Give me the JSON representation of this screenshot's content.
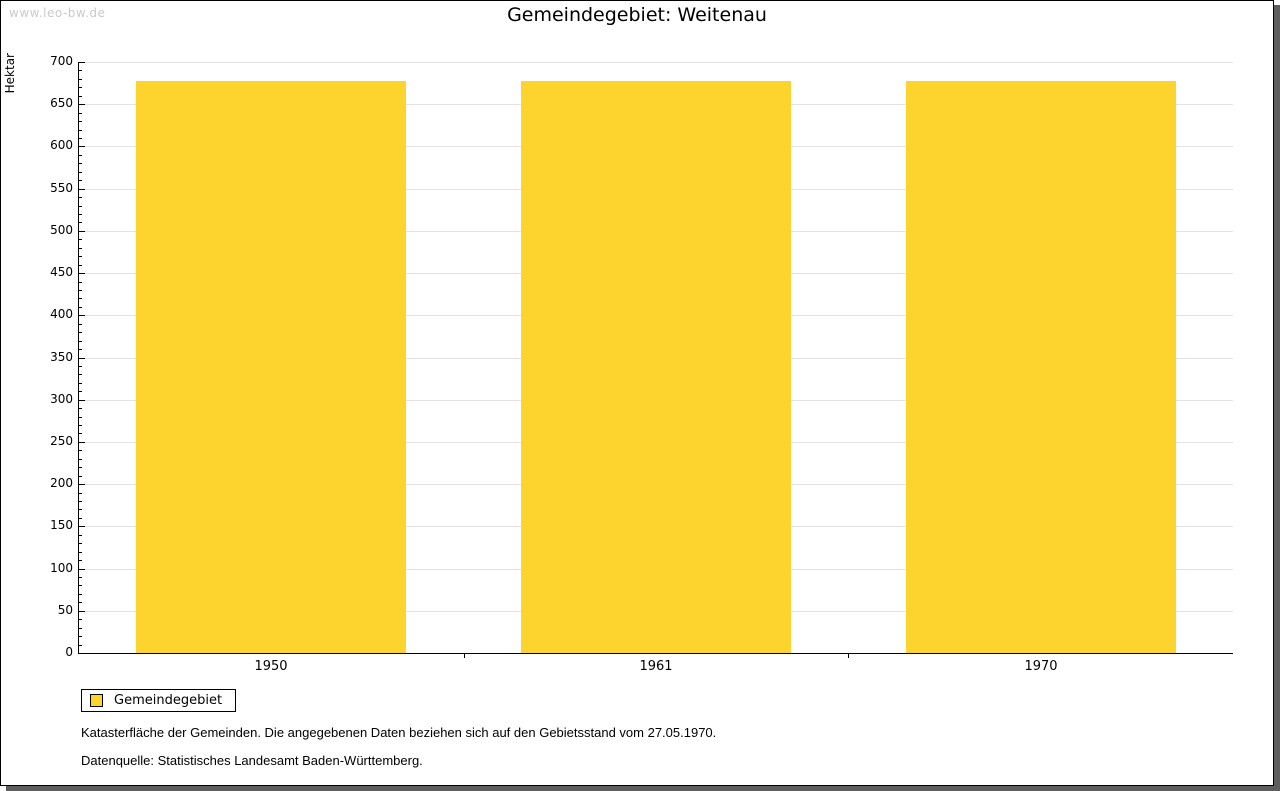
{
  "watermark": "www.leo-bw.de",
  "header": {
    "title": "Gemeindegebiet: Weitenau"
  },
  "chart_data": {
    "type": "bar",
    "title": "Gemeindegebiet: Weitenau",
    "xlabel": "",
    "ylabel": "Hektar",
    "categories": [
      "1950",
      "1961",
      "1970"
    ],
    "series": [
      {
        "name": "Gemeindegebiet",
        "values": [
          678,
          678,
          678
        ]
      }
    ],
    "ylim": [
      0,
      700
    ],
    "ytick_step": 50,
    "yminor_step": 10,
    "grid": true,
    "legend_position": "bottom-left",
    "bar_color": "#fdd32d"
  },
  "legend": {
    "items": [
      {
        "label": "Gemeindegebiet",
        "color": "#fdd32d"
      }
    ]
  },
  "notes": {
    "line1": "Katasterfläche der Gemeinden. Die angegebenen Daten beziehen sich auf den Gebietsstand vom 27.05.1970.",
    "line2": "Datenquelle: Statistisches Landesamt Baden-Württemberg."
  },
  "colors": {
    "bar": "#fdd32d",
    "grid": "#e2e2e2",
    "axis": "#000000",
    "watermark": "#cacaca",
    "frame_shadow": "#5e5e5e"
  }
}
